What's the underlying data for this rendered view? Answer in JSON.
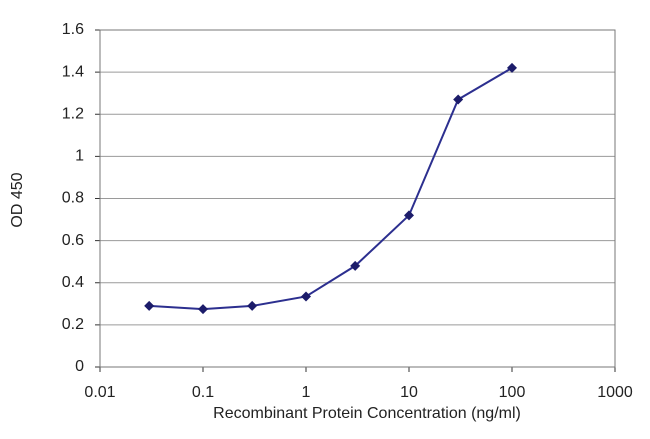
{
  "chart_data": {
    "type": "line",
    "xlabel": "Recombinant Protein Concentration (ng/ml)",
    "ylabel": "OD 450",
    "x": [
      0.03,
      0.1,
      0.3,
      1,
      3,
      10,
      30,
      100
    ],
    "series": [
      {
        "color": "#2c2f8f",
        "values": [
          0.29,
          0.275,
          0.29,
          0.335,
          0.48,
          0.72,
          1.27,
          1.42
        ]
      }
    ],
    "xscale": "log",
    "xlim": [
      0.01,
      1000
    ],
    "xticks": [
      0.01,
      0.1,
      1,
      10,
      100,
      1000
    ],
    "ylim": [
      0,
      1.6
    ],
    "yticks": [
      0,
      0.2,
      0.4,
      0.6,
      0.8,
      1,
      1.2,
      1.4,
      1.6
    ],
    "grid": true
  }
}
